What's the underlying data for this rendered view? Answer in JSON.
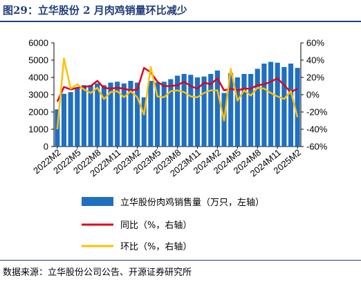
{
  "title": "图29：立华股份 2 月肉鸡销量环比减少",
  "source": "数据来源：立华股份公司公告、开源证券研究所",
  "chart_data": {
    "type": "bar",
    "x": [
      "2022M2",
      "2022M3",
      "2022M4",
      "2022M5",
      "2022M6",
      "2022M7",
      "2022M8",
      "2022M9",
      "2022M10",
      "2022M11",
      "2022M12",
      "2023M1",
      "2023M2",
      "2023M3",
      "2023M4",
      "2023M5",
      "2023M6",
      "2023M7",
      "2023M8",
      "2023M9",
      "2023M10",
      "2023M11",
      "2023M12",
      "2024M1",
      "2024M2",
      "2024M3",
      "2024M4",
      "2024M5",
      "2024M6",
      "2024M7",
      "2024M8",
      "2024M9",
      "2024M10",
      "2024M11",
      "2024M12",
      "2025M1",
      "2025M2"
    ],
    "x_tick_labels": [
      "2022M2",
      "2022M5",
      "2022M8",
      "2022M11",
      "2023M2",
      "2023M5",
      "2023M8",
      "2023M11",
      "2024M2",
      "2024M5",
      "2024M8",
      "2024M11",
      "2025M2"
    ],
    "y_left_ticks": [
      "0",
      "1000",
      "2000",
      "3000",
      "4000",
      "5000",
      "6000"
    ],
    "y_right_ticks": [
      "-60%",
      "-40%",
      "-20%",
      "0%",
      "20%",
      "40%",
      "60%"
    ],
    "ylim_left": [
      0,
      6000
    ],
    "ylim_right": [
      -60,
      60
    ],
    "series": [
      {
        "name": "立华股份肉鸡销售量（万只，左轴）",
        "type": "bar",
        "axis": "left",
        "color": "#1f6fc2",
        "values": [
          2150,
          3050,
          3150,
          3400,
          3550,
          3550,
          3650,
          3550,
          3700,
          3750,
          3650,
          3800,
          3700,
          2850,
          3800,
          3700,
          3750,
          3900,
          4100,
          4200,
          4150,
          4000,
          4050,
          4200,
          4400,
          3100,
          4250,
          4000,
          4200,
          4200,
          4500,
          4800,
          4900,
          4850,
          4600,
          4800,
          4550
        ]
      },
      {
        "name": "同比（%，右轴）",
        "type": "line",
        "axis": "right",
        "color": "#e0001b",
        "values": [
          -8,
          9,
          6,
          8,
          9,
          10,
          16,
          8,
          7,
          8,
          7,
          5,
          6,
          31,
          26,
          15,
          10,
          10,
          11,
          15,
          10,
          7,
          14,
          12,
          19,
          5,
          7,
          5,
          7,
          7,
          11,
          12,
          15,
          19,
          11,
          3,
          7
        ]
      },
      {
        "name": "环比（%，右轴）",
        "type": "line",
        "axis": "right",
        "color": "#ffc000",
        "values": [
          -40,
          42,
          7,
          12,
          6,
          2,
          8,
          -5,
          3,
          4,
          -3,
          4,
          -3,
          -23,
          32,
          -2,
          -3,
          4,
          5,
          3,
          -2,
          -3,
          2,
          5,
          5,
          -30,
          30,
          -7,
          5,
          -1,
          8,
          7,
          2,
          -2,
          -5,
          4,
          -26
        ]
      }
    ],
    "legend_position": "bottom-center",
    "grid": false
  }
}
